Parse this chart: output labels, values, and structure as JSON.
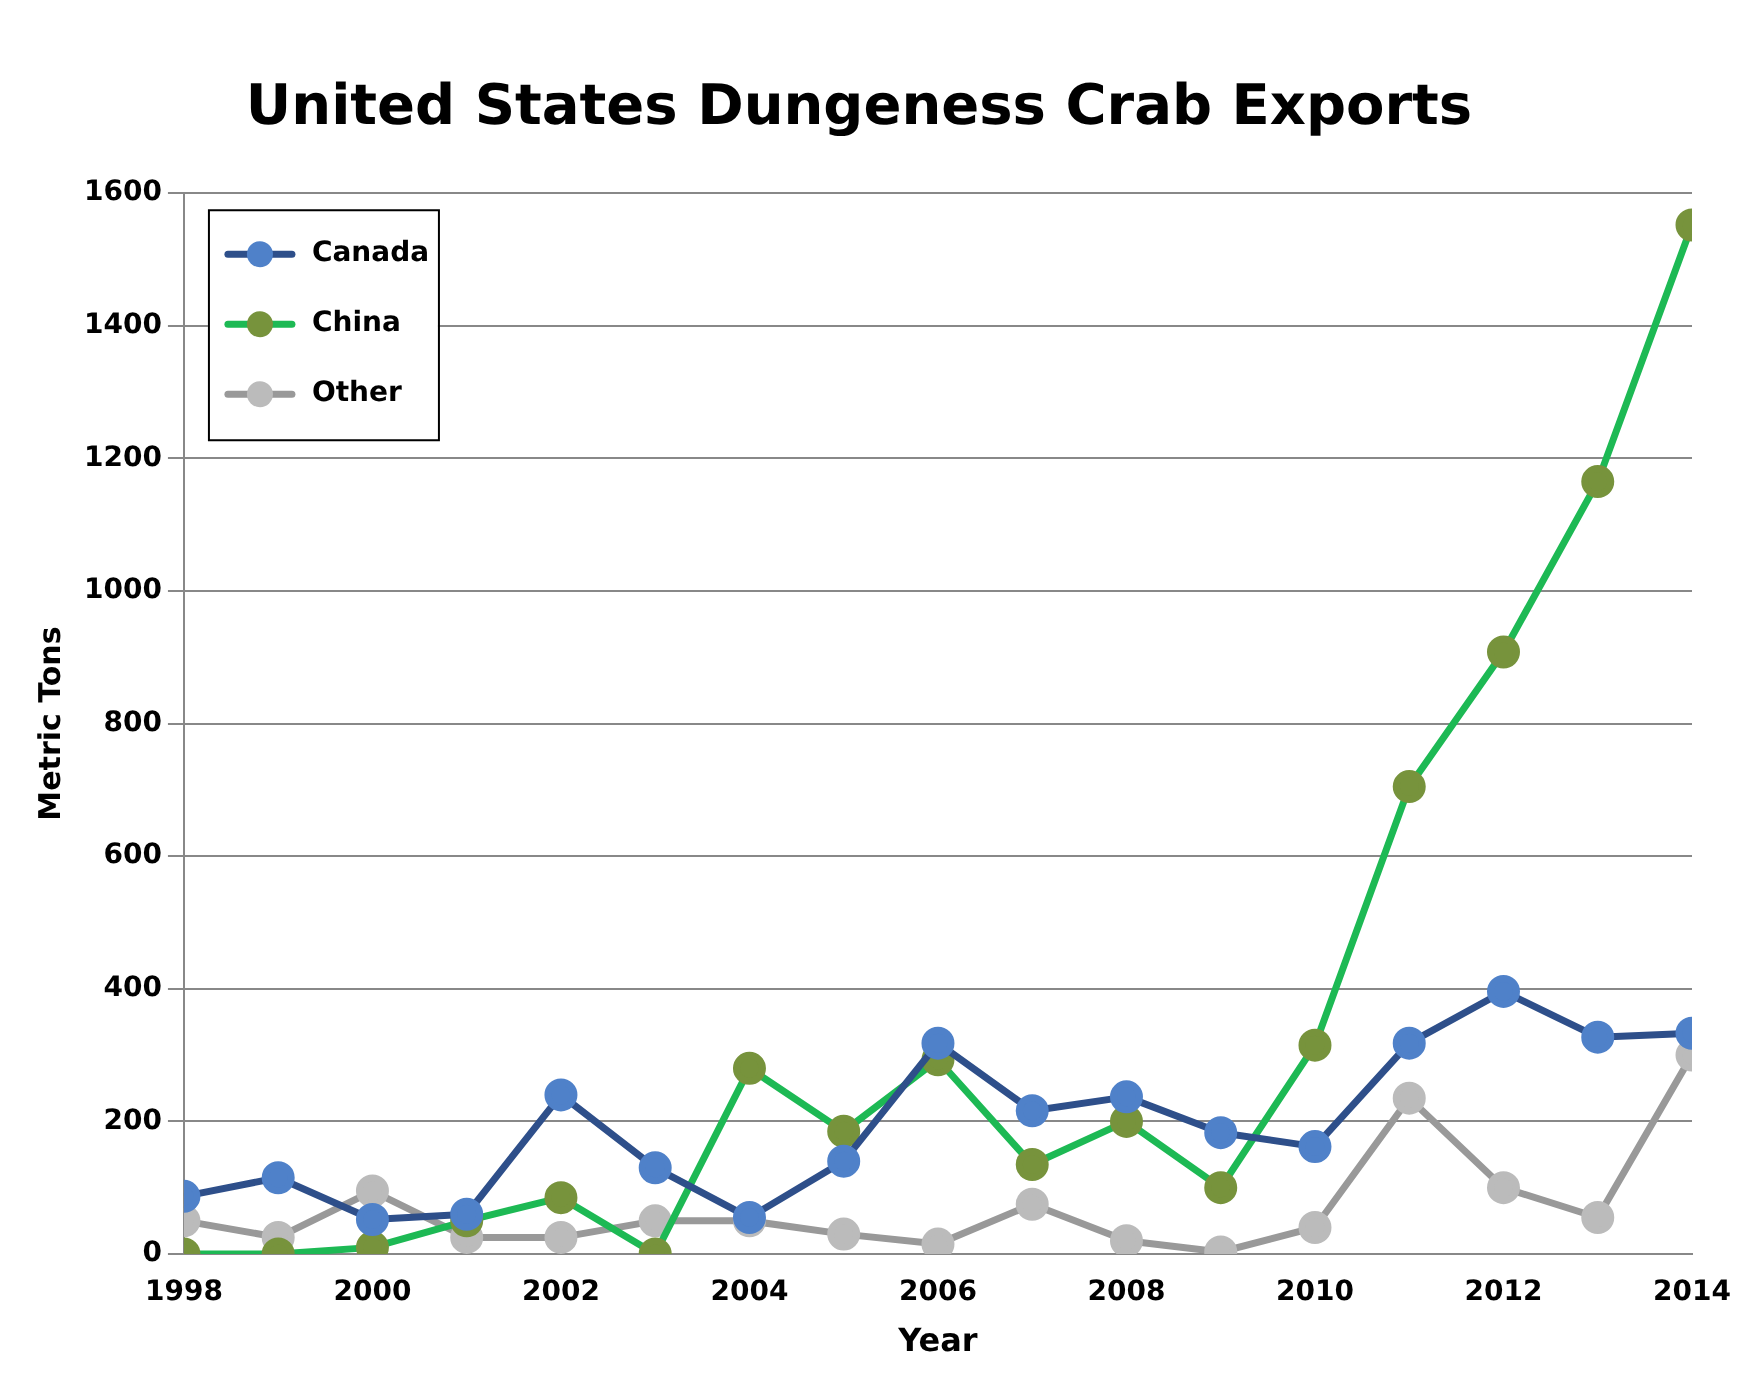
{
  "chart_data": {
    "type": "line",
    "title": "United States Dungeness Crab Exports",
    "xlabel": "Year",
    "ylabel": "Metric Tons",
    "x": [
      1998,
      1999,
      2000,
      2001,
      2002,
      2003,
      2004,
      2005,
      2006,
      2007,
      2008,
      2009,
      2010,
      2011,
      2012,
      2013,
      2014
    ],
    "series": [
      {
        "name": "Canada",
        "color": "#2e4f8a",
        "values": [
          87,
          115,
          52,
          60,
          240,
          130,
          55,
          140,
          318,
          216,
          237,
          183,
          162,
          318,
          396,
          327,
          333
        ]
      },
      {
        "name": "China",
        "color": "#1db954",
        "values": [
          0,
          0,
          10,
          50,
          85,
          0,
          280,
          185,
          293,
          135,
          200,
          100,
          315,
          705,
          908,
          1165,
          1552
        ]
      },
      {
        "name": "Other",
        "color": "#999999",
        "values": [
          50,
          25,
          95,
          25,
          25,
          50,
          50,
          30,
          15,
          75,
          20,
          3,
          40,
          235,
          100,
          55,
          300
        ]
      }
    ],
    "xlim": [
      1998,
      2014
    ],
    "xticks": [
      1998,
      2000,
      2002,
      2004,
      2006,
      2008,
      2010,
      2012,
      2014
    ],
    "ylim": [
      0,
      1600
    ],
    "yticks": [
      0,
      200,
      400,
      600,
      800,
      1000,
      1200,
      1400,
      1600
    ],
    "grid": "y",
    "legend": "top left",
    "marker": "circle",
    "line_style": "solid"
  }
}
